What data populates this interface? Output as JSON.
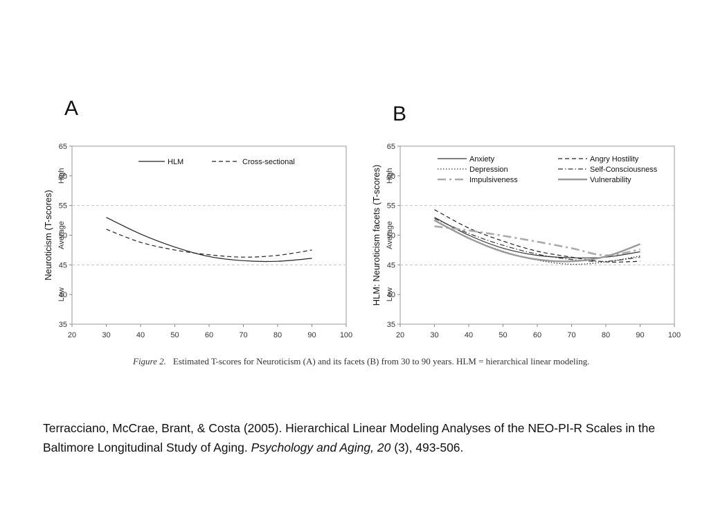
{
  "panels": {
    "a_letter": "A",
    "b_letter": "B"
  },
  "caption": {
    "label": "Figure 2.",
    "text": "Estimated T-scores for Neuroticism (A) and its facets (B) from 30 to 90 years. HLM = hierarchical linear modeling."
  },
  "citation": {
    "authors_title": "Terracciano, McCrae, Brant, & Costa (2005). Hierarchical Linear Modeling Analyses of the NEO-PI-R Scales in the Baltimore Longitudinal Study of Aging. ",
    "journal": "Psychology and Aging, 20",
    "rest": " (3), 493-506."
  },
  "chart_data": [
    {
      "type": "line",
      "panel": "A",
      "xlabel": "",
      "ylabel": "Neuroticism (T-scores)",
      "xlim": [
        20,
        100
      ],
      "ylim": [
        35,
        65
      ],
      "xticks": [
        20,
        30,
        40,
        50,
        60,
        70,
        80,
        90,
        100
      ],
      "yticks": [
        35,
        40,
        45,
        50,
        55,
        60,
        65
      ],
      "reference_lines": [
        45,
        55
      ],
      "bands": [
        {
          "label": "High",
          "y": 60
        },
        {
          "label": "Average",
          "y": 50
        },
        {
          "label": "Low",
          "y": 40
        }
      ],
      "legend_position": "top",
      "grid": false,
      "series": [
        {
          "name": "HLM",
          "style": "solid",
          "color": "#222222",
          "x": [
            30,
            40,
            50,
            60,
            70,
            80,
            90
          ],
          "y": [
            53.0,
            50.2,
            48.0,
            46.4,
            45.7,
            45.6,
            46.1
          ]
        },
        {
          "name": "Cross-sectional",
          "style": "dashed",
          "color": "#222222",
          "x": [
            30,
            40,
            50,
            60,
            70,
            80,
            90
          ],
          "y": [
            51.0,
            48.8,
            47.5,
            46.7,
            46.3,
            46.6,
            47.5
          ]
        }
      ]
    },
    {
      "type": "line",
      "panel": "B",
      "xlabel": "",
      "ylabel": "HLM: Neuroticism facets (T-scores)",
      "xlim": [
        20,
        100
      ],
      "ylim": [
        35,
        65
      ],
      "xticks": [
        20,
        30,
        40,
        50,
        60,
        70,
        80,
        90,
        100
      ],
      "yticks": [
        35,
        40,
        45,
        50,
        55,
        60,
        65
      ],
      "reference_lines": [
        45,
        55
      ],
      "bands": [
        {
          "label": "High",
          "y": 60
        },
        {
          "label": "Average",
          "y": 50
        },
        {
          "label": "Low",
          "y": 40
        }
      ],
      "legend_position": "top",
      "grid": false,
      "series": [
        {
          "name": "Anxiety",
          "style": "solid",
          "color": "#333333",
          "x": [
            30,
            40,
            50,
            60,
            70,
            80,
            90
          ],
          "y": [
            53.0,
            50.0,
            47.8,
            46.6,
            46.2,
            46.3,
            47.2
          ]
        },
        {
          "name": "Angry Hostility",
          "style": "dashed",
          "color": "#222222",
          "x": [
            30,
            40,
            50,
            60,
            70,
            80,
            90
          ],
          "y": [
            54.3,
            51.2,
            49.0,
            47.3,
            46.3,
            45.5,
            45.6
          ]
        },
        {
          "name": "Depression",
          "style": "dotted",
          "color": "#333333",
          "x": [
            30,
            40,
            50,
            60,
            70,
            80,
            90
          ],
          "y": [
            52.5,
            49.5,
            47.3,
            45.8,
            45.1,
            45.5,
            46.5
          ]
        },
        {
          "name": "Self-Consciousness",
          "style": "dashdot",
          "color": "#333333",
          "x": [
            30,
            40,
            50,
            60,
            70,
            80,
            90
          ],
          "y": [
            52.8,
            50.3,
            48.3,
            46.8,
            45.9,
            45.6,
            46.3
          ]
        },
        {
          "name": "Impulsiveness",
          "style": "dashdot-thick",
          "color": "#aaaaaa",
          "x": [
            30,
            40,
            50,
            60,
            70,
            80,
            90
          ],
          "y": [
            51.5,
            50.8,
            49.9,
            48.9,
            47.8,
            46.6,
            47.6
          ]
        },
        {
          "name": "Vulnerability",
          "style": "solid-thick",
          "color": "#999999",
          "x": [
            30,
            40,
            50,
            60,
            70,
            80,
            90
          ],
          "y": [
            52.5,
            49.5,
            47.2,
            45.9,
            45.6,
            46.4,
            48.5
          ]
        }
      ]
    }
  ]
}
